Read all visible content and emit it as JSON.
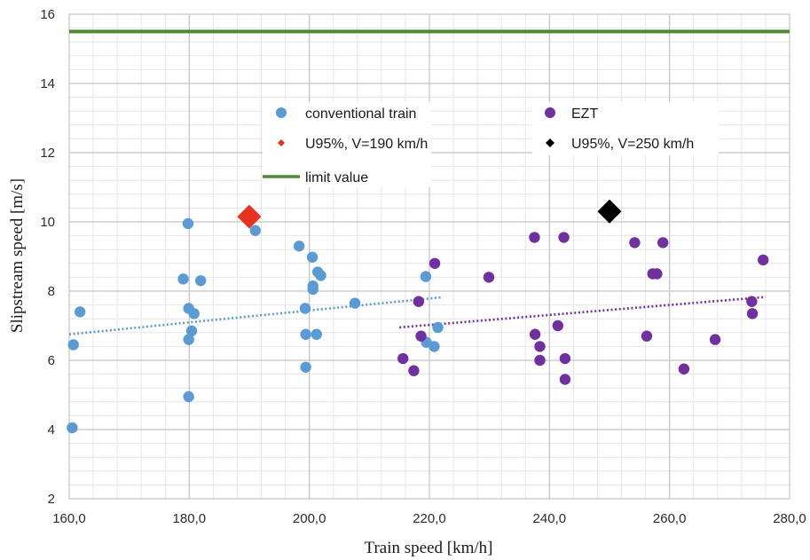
{
  "chart_data": {
    "type": "scatter",
    "xlabel": "Train speed [km/h]",
    "ylabel": "Slipstream speed [m/s]",
    "xlim": [
      160,
      280
    ],
    "ylim": [
      2,
      16
    ],
    "x_ticks": [
      "160,0",
      "180,0",
      "200,0",
      "220,0",
      "240,0",
      "260,0",
      "280,0"
    ],
    "y_ticks": [
      "2",
      "4",
      "6",
      "8",
      "10",
      "12",
      "14",
      "16"
    ],
    "grid": true,
    "legend": {
      "conventional_label": "conventional train",
      "ezt_label": "EZT",
      "u95_190_label": "U95%, V=190  km/h",
      "u95_250_label": "U95%, V=250  km/h",
      "limit_label": "limit value"
    },
    "colors": {
      "conventional": "#5b9bd5",
      "ezt": "#7030a0",
      "u95_190": "#e8321e",
      "u95_250": "#000000",
      "limit": "#4e8a35",
      "grid_major": "#c4c4c4",
      "grid_minor": "#e6e6e6"
    },
    "limit_value": 15.5,
    "series": [
      {
        "name": "conventional train",
        "marker": "circle",
        "points": [
          [
            160.5,
            4.05
          ],
          [
            160.7,
            6.45
          ],
          [
            161.8,
            7.4
          ],
          [
            179.0,
            8.35
          ],
          [
            179.8,
            9.95
          ],
          [
            179.9,
            7.5
          ],
          [
            179.9,
            6.6
          ],
          [
            179.9,
            4.95
          ],
          [
            180.4,
            6.85
          ],
          [
            180.8,
            7.35
          ],
          [
            181.9,
            8.3
          ],
          [
            191.0,
            9.75
          ],
          [
            198.3,
            9.3
          ],
          [
            199.3,
            7.5
          ],
          [
            199.4,
            6.75
          ],
          [
            199.4,
            5.8
          ],
          [
            200.5,
            8.98
          ],
          [
            200.6,
            8.05
          ],
          [
            200.6,
            8.15
          ],
          [
            201.2,
            6.75
          ],
          [
            201.4,
            8.55
          ],
          [
            201.9,
            8.45
          ],
          [
            207.6,
            7.65
          ],
          [
            219.4,
            8.42
          ],
          [
            219.5,
            6.52
          ],
          [
            220.8,
            6.4
          ],
          [
            221.4,
            6.95
          ]
        ]
      },
      {
        "name": "EZT",
        "marker": "circle",
        "points": [
          [
            215.6,
            6.05
          ],
          [
            217.4,
            5.7
          ],
          [
            218.2,
            7.7
          ],
          [
            218.6,
            6.7
          ],
          [
            220.9,
            8.8
          ],
          [
            229.9,
            8.4
          ],
          [
            237.5,
            9.55
          ],
          [
            237.6,
            6.75
          ],
          [
            238.4,
            6.0
          ],
          [
            238.4,
            6.4
          ],
          [
            241.4,
            7.0
          ],
          [
            242.4,
            9.55
          ],
          [
            242.6,
            6.05
          ],
          [
            242.6,
            5.45
          ],
          [
            254.2,
            9.4
          ],
          [
            256.2,
            6.7
          ],
          [
            257.2,
            8.5
          ],
          [
            257.9,
            8.5
          ],
          [
            258.9,
            9.4
          ],
          [
            262.4,
            5.75
          ],
          [
            267.6,
            6.6
          ],
          [
            273.7,
            7.7
          ],
          [
            273.8,
            7.35
          ],
          [
            275.6,
            8.9
          ]
        ]
      },
      {
        "name": "U95%, V=190  km/h",
        "marker": "diamond",
        "points": [
          [
            190.0,
            10.15
          ]
        ]
      },
      {
        "name": "U95%, V=250  km/h",
        "marker": "diamond",
        "points": [
          [
            250.0,
            10.3
          ]
        ]
      }
    ],
    "trendlines": [
      {
        "series": "conventional train",
        "from": [
          160,
          6.75
        ],
        "to": [
          222,
          7.82
        ]
      },
      {
        "series": "EZT",
        "from": [
          215,
          6.95
        ],
        "to": [
          276,
          7.83
        ]
      }
    ]
  }
}
